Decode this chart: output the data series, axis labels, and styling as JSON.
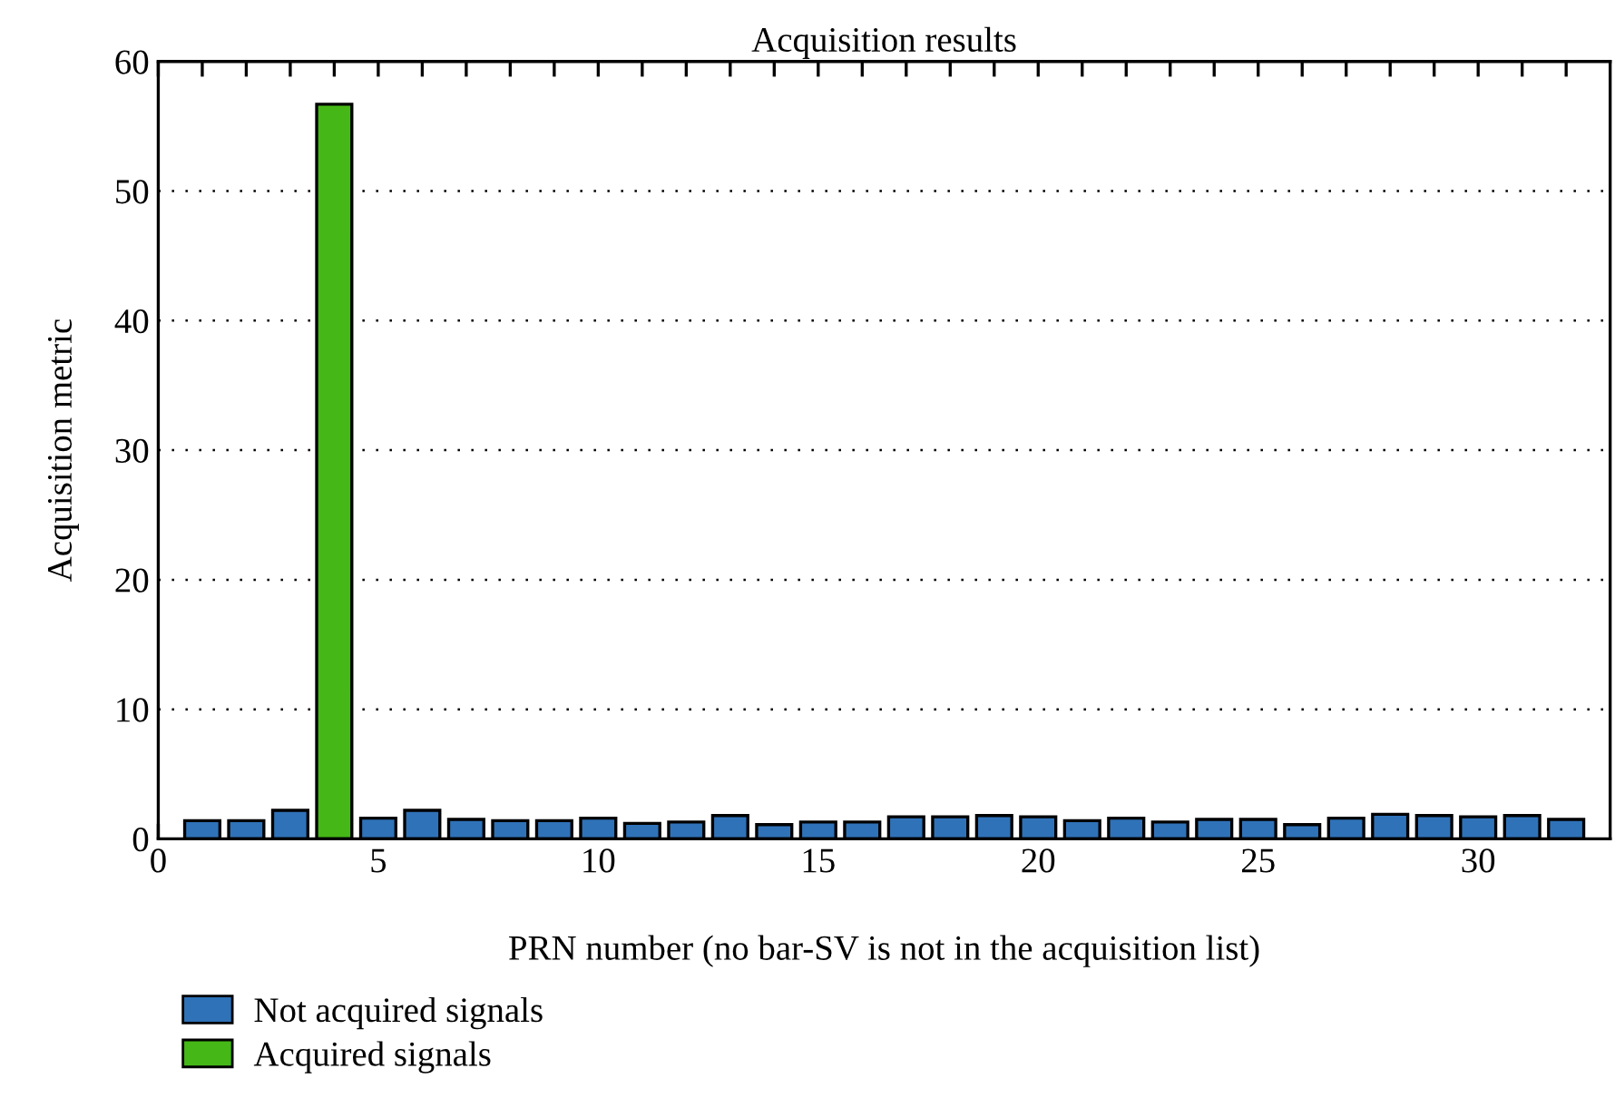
{
  "chart_data": {
    "type": "bar",
    "title": "Acquisition results",
    "xlabel": "PRN number (no bar-SV is not in the acquisition list)",
    "ylabel": "Acquisition metric",
    "x": [
      1,
      2,
      3,
      4,
      5,
      6,
      7,
      8,
      9,
      10,
      11,
      12,
      13,
      14,
      15,
      16,
      17,
      18,
      19,
      20,
      21,
      22,
      23,
      24,
      25,
      26,
      27,
      28,
      29,
      30,
      31,
      32
    ],
    "series": [
      {
        "name": "Not acquired signals",
        "color": "#2f72b8",
        "values": [
          1.4,
          1.4,
          2.2,
          null,
          1.6,
          2.2,
          1.5,
          1.4,
          1.4,
          1.6,
          1.2,
          1.3,
          1.8,
          1.1,
          1.3,
          1.3,
          1.7,
          1.7,
          1.8,
          1.7,
          1.4,
          1.6,
          1.3,
          1.5,
          1.5,
          1.1,
          1.6,
          1.9,
          1.8,
          1.7,
          1.8,
          1.5
        ]
      },
      {
        "name": "Acquired signals",
        "color": "#45b817",
        "values": [
          null,
          null,
          null,
          56.7,
          null,
          null,
          null,
          null,
          null,
          null,
          null,
          null,
          null,
          null,
          null,
          null,
          null,
          null,
          null,
          null,
          null,
          null,
          null,
          null,
          null,
          null,
          null,
          null,
          null,
          null,
          null,
          null
        ]
      }
    ],
    "xlim": [
      0,
      33
    ],
    "xticks": [
      0,
      {
        "value": 1,
        "label": null
      },
      {
        "value": 2,
        "label": null
      },
      {
        "value": 3,
        "label": null
      },
      {
        "value": 4,
        "label": null
      },
      5,
      {
        "value": 6,
        "label": null
      },
      {
        "value": 7,
        "label": null
      },
      {
        "value": 8,
        "label": null
      },
      {
        "value": 9,
        "label": null
      },
      10,
      {
        "value": 11,
        "label": null
      },
      {
        "value": 12,
        "label": null
      },
      {
        "value": 13,
        "label": null
      },
      {
        "value": 14,
        "label": null
      },
      15,
      {
        "value": 16,
        "label": null
      },
      {
        "value": 17,
        "label": null
      },
      {
        "value": 18,
        "label": null
      },
      {
        "value": 19,
        "label": null
      },
      20,
      {
        "value": 21,
        "label": null
      },
      {
        "value": 22,
        "label": null
      },
      {
        "value": 23,
        "label": null
      },
      {
        "value": 24,
        "label": null
      },
      25,
      {
        "value": 26,
        "label": null
      },
      {
        "value": 27,
        "label": null
      },
      {
        "value": 28,
        "label": null
      },
      {
        "value": 29,
        "label": null
      },
      30,
      {
        "value": 31,
        "label": null
      },
      {
        "value": 32,
        "label": null
      }
    ],
    "ylim": [
      0,
      60
    ],
    "yticks": [
      0,
      10,
      20,
      30,
      40,
      50,
      60
    ],
    "grid": "y",
    "legend": "bottom left"
  }
}
